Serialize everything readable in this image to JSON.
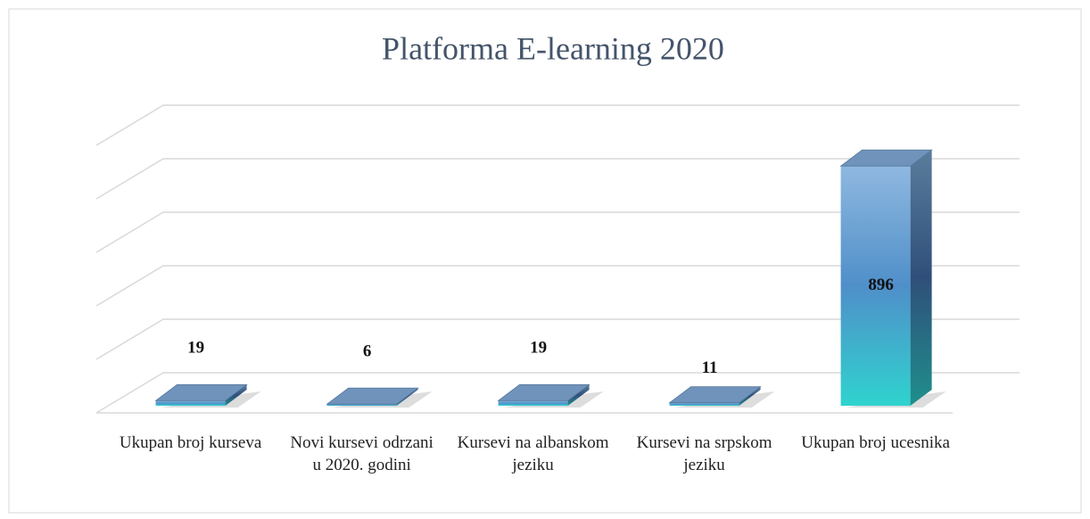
{
  "chart_data": {
    "type": "bar3d",
    "title": "Platforma E-learning 2020",
    "categories": [
      "Ukupan broj kurseva",
      "Novi kursevi odrzani u 2020. godini",
      "Kursevi na albanskom jeziku",
      "Kursevi na srpskom jeziku",
      "Ukupan broj ucesnika"
    ],
    "values": [
      19,
      6,
      19,
      11,
      896
    ],
    "color": "#8fb8e0",
    "ylim": [
      0,
      1000
    ],
    "yticks": [
      0,
      200,
      400,
      600,
      800,
      1000
    ],
    "grid": true
  }
}
